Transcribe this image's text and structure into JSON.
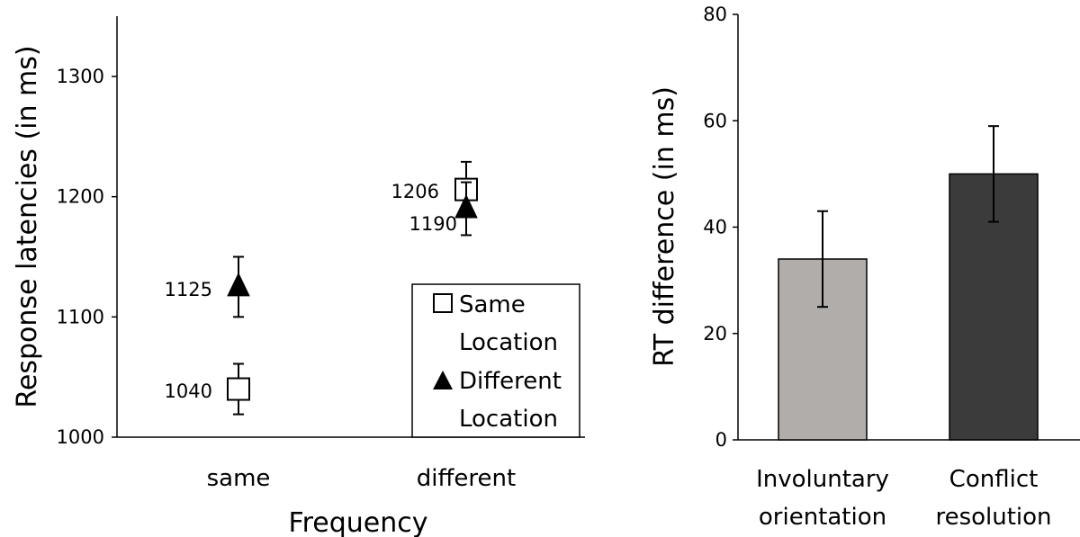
{
  "chart_data": [
    {
      "type": "scatter",
      "xlabel": "Frequency",
      "ylabel": "Response latencies (in ms)",
      "categories": [
        "same",
        "different"
      ],
      "ylim": [
        1000,
        1350
      ],
      "yticks": [
        1000,
        1100,
        1200,
        1300
      ],
      "grid": false,
      "legend_position": "bottom-right",
      "series": [
        {
          "name": "Same Location",
          "name_lines": [
            "Same",
            "Location"
          ],
          "marker": "open-square",
          "values": [
            1040,
            1206
          ],
          "err": [
            21,
            23
          ],
          "labels": [
            "1040",
            "1206"
          ]
        },
        {
          "name": "Different Location",
          "name_lines": [
            "Different",
            "Location"
          ],
          "marker": "filled-triangle",
          "values": [
            1125,
            1190
          ],
          "err": [
            25,
            22
          ],
          "labels": [
            "1125",
            "1190"
          ]
        }
      ]
    },
    {
      "type": "bar",
      "xlabel": "",
      "ylabel": "RT difference (in ms)",
      "categories": [
        "Involuntary orientation",
        "Conflict resolution"
      ],
      "category_lines": [
        [
          "Involuntary",
          "orientation"
        ],
        [
          "Conflict",
          "resolution"
        ]
      ],
      "values": [
        34,
        50
      ],
      "err": [
        9,
        9
      ],
      "colors": [
        "#b0adab",
        "#3b3b3b"
      ],
      "ylim": [
        0,
        80
      ],
      "yticks": [
        0,
        20,
        40,
        60,
        80
      ],
      "grid": false
    }
  ]
}
